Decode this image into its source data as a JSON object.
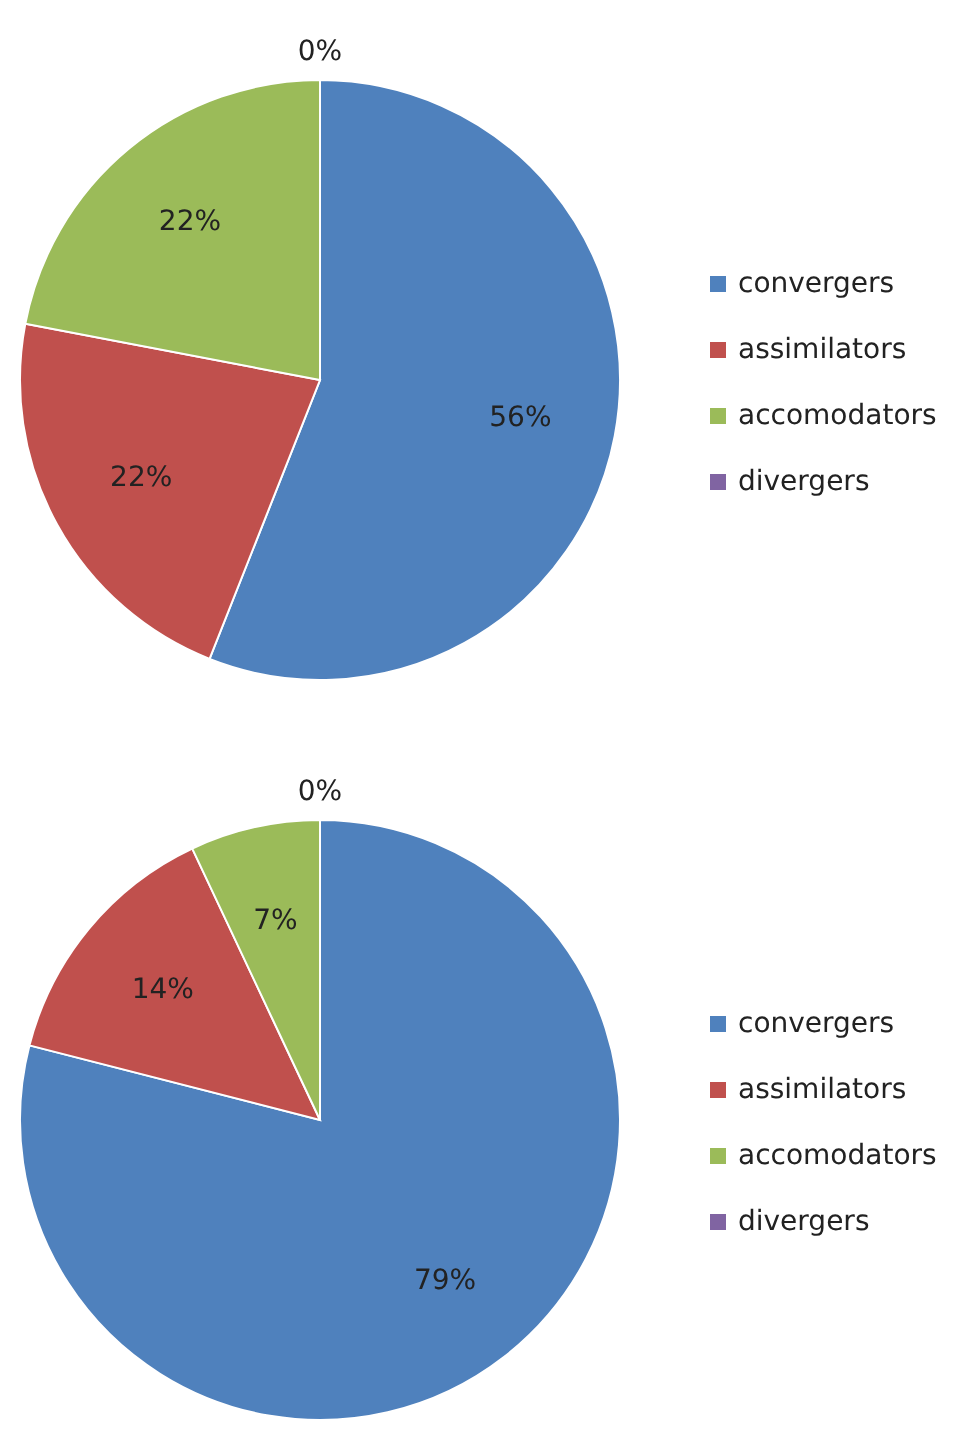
{
  "chart_data": [
    {
      "type": "pie",
      "categories": [
        "convergers",
        "assimilators",
        "accomodators",
        "divergers"
      ],
      "values": [
        56,
        22,
        22,
        0
      ],
      "value_labels": [
        "56%",
        "22%",
        "22%",
        "0%"
      ],
      "colors": [
        "#4f81bd",
        "#c0504d",
        "#9bbb59",
        "#8064a2"
      ],
      "legend": "right"
    },
    {
      "type": "pie",
      "categories": [
        "convergers",
        "assimilators",
        "accomodators",
        "divergers"
      ],
      "values": [
        79,
        14,
        7,
        0
      ],
      "value_labels": [
        "79%",
        "14%",
        "7%",
        "0%"
      ],
      "colors": [
        "#4f81bd",
        "#c0504d",
        "#9bbb59",
        "#8064a2"
      ],
      "legend": "right"
    }
  ]
}
